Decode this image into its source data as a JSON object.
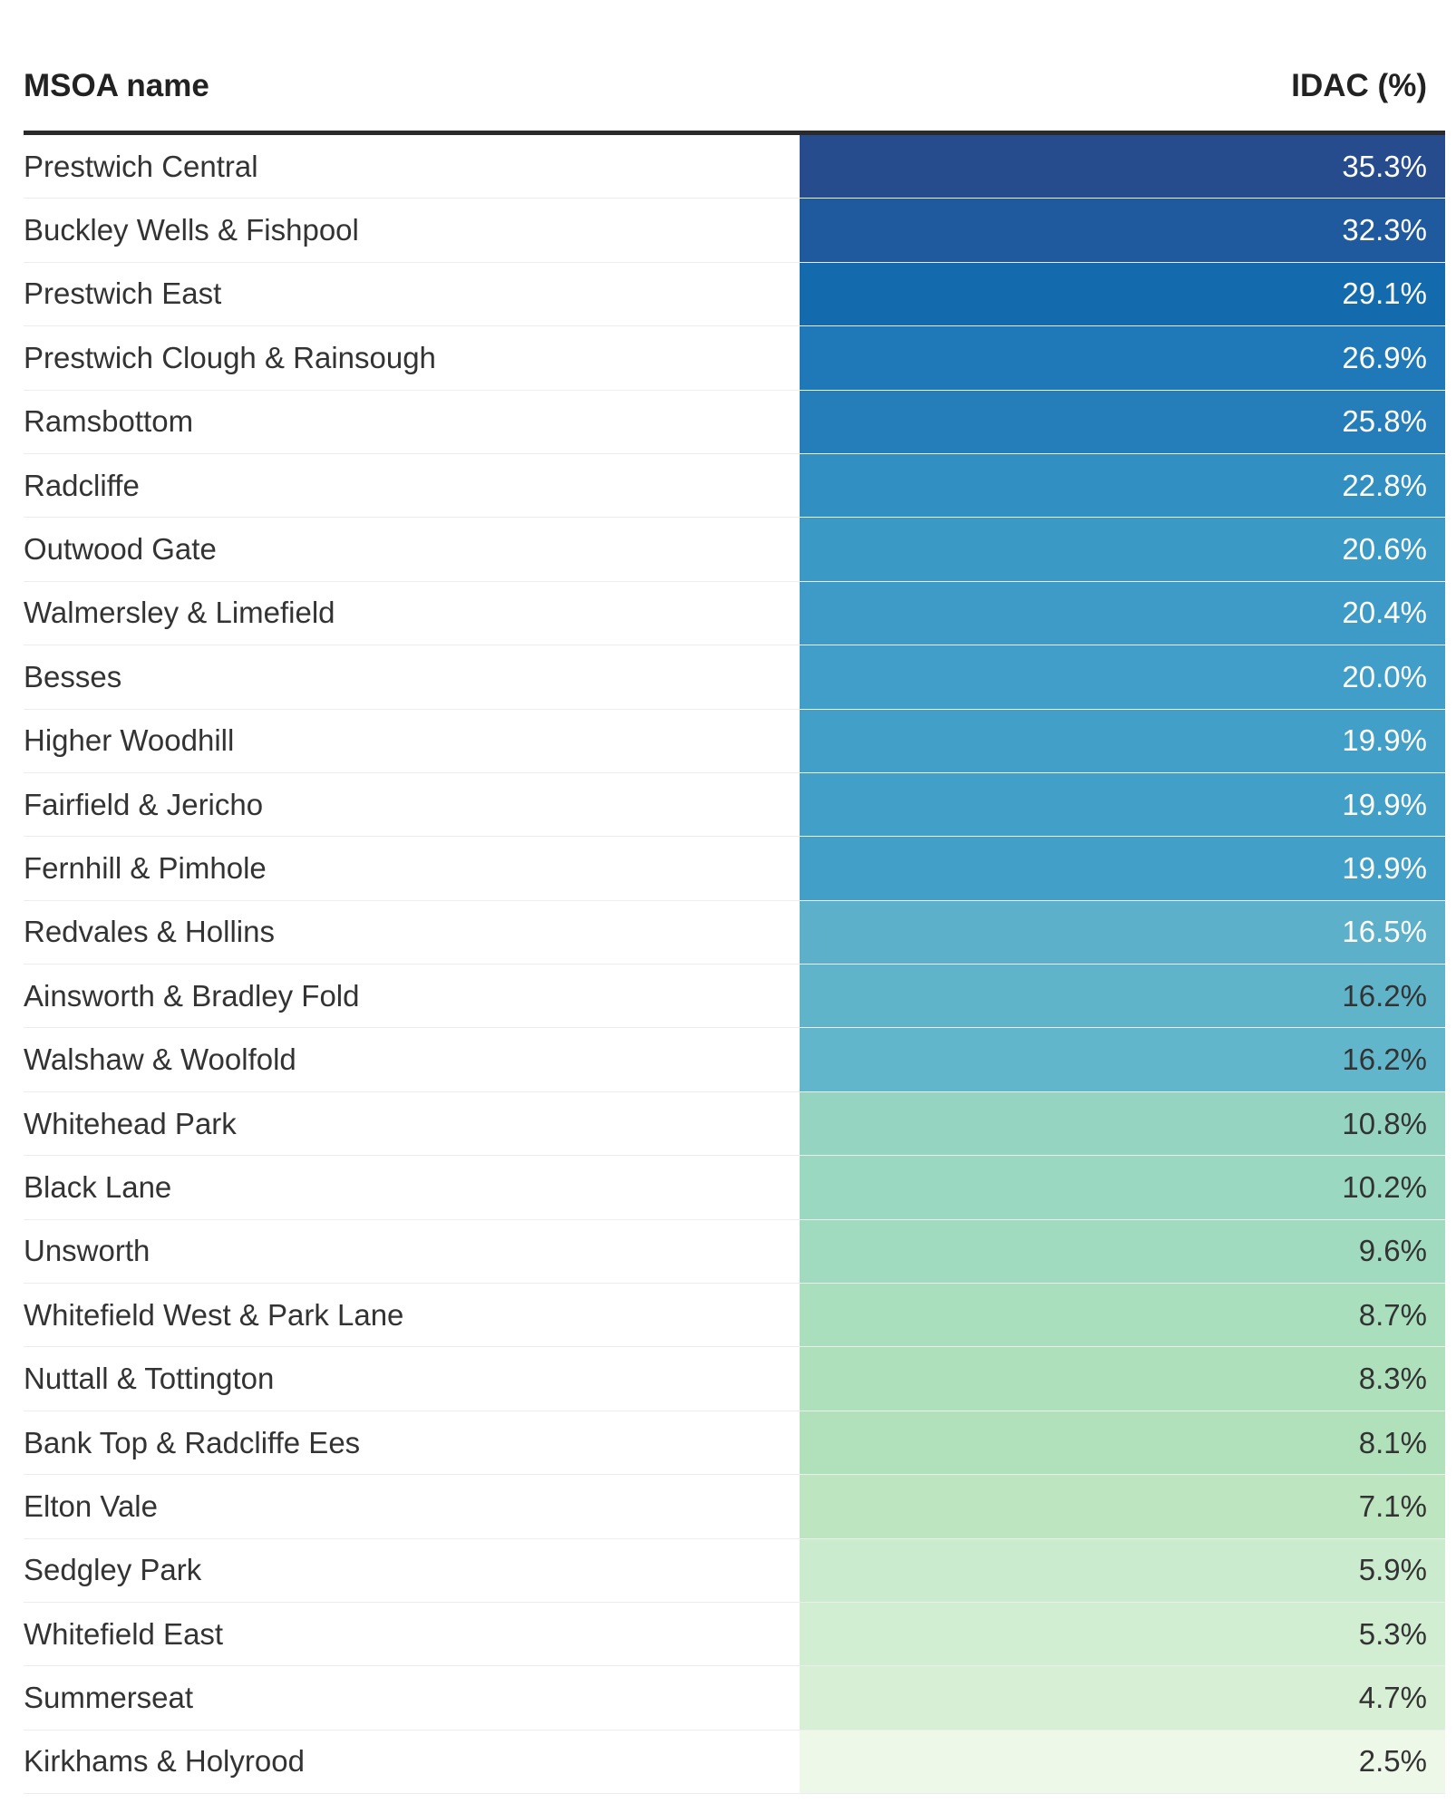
{
  "chart_data": {
    "type": "table",
    "columns": [
      "MSOA name",
      "IDAC (%)"
    ],
    "rows": [
      {
        "name": "Prestwich Central",
        "value": 35.3,
        "label": "35.3%",
        "color": "#264c8e"
      },
      {
        "name": "Buckley Wells & Fishpool",
        "value": 32.3,
        "label": "32.3%",
        "color": "#1f5a9f"
      },
      {
        "name": "Prestwich East",
        "value": 29.1,
        "label": "29.1%",
        "color": "#136bae"
      },
      {
        "name": "Prestwich Clough & Rainsough",
        "value": 26.9,
        "label": "26.9%",
        "color": "#1f79b8"
      },
      {
        "name": "Ramsbottom",
        "value": 25.8,
        "label": "25.8%",
        "color": "#257dba"
      },
      {
        "name": "Radcliffe",
        "value": 22.8,
        "label": "22.8%",
        "color": "#318fc2"
      },
      {
        "name": "Outwood Gate",
        "value": 20.6,
        "label": "20.6%",
        "color": "#3b99c6"
      },
      {
        "name": "Walmersley & Limefield",
        "value": 20.4,
        "label": "20.4%",
        "color": "#3e9bc7"
      },
      {
        "name": "Besses",
        "value": 20.0,
        "label": "20.0%",
        "color": "#409ec8"
      },
      {
        "name": "Higher Woodhill",
        "value": 19.9,
        "label": "19.9%",
        "color": "#429fc8"
      },
      {
        "name": "Fairfield & Jericho",
        "value": 19.9,
        "label": "19.9%",
        "color": "#429fc8"
      },
      {
        "name": "Fernhill & Pimhole",
        "value": 19.9,
        "label": "19.9%",
        "color": "#429fc8"
      },
      {
        "name": "Redvales & Hollins",
        "value": 16.5,
        "label": "16.5%",
        "color": "#5cb0c9"
      },
      {
        "name": "Ainsworth & Bradley Fold",
        "value": 16.2,
        "label": "16.2%",
        "color": "#60b4ca"
      },
      {
        "name": "Walshaw & Woolfold",
        "value": 16.2,
        "label": "16.2%",
        "color": "#62b6cb"
      },
      {
        "name": "Whitehead Park",
        "value": 10.8,
        "label": "10.8%",
        "color": "#95d4c1"
      },
      {
        "name": "Black Lane",
        "value": 10.2,
        "label": "10.2%",
        "color": "#9ad8c1"
      },
      {
        "name": "Unsworth",
        "value": 9.6,
        "label": "9.6%",
        "color": "#a0dbc0"
      },
      {
        "name": "Whitefield West & Park Lane",
        "value": 8.7,
        "label": "8.7%",
        "color": "#a9dfbd"
      },
      {
        "name": "Nuttall & Tottington",
        "value": 8.3,
        "label": "8.3%",
        "color": "#aee0bc"
      },
      {
        "name": "Bank Top & Radcliffe Ees",
        "value": 8.1,
        "label": "8.1%",
        "color": "#b1e1bb"
      },
      {
        "name": "Elton Vale",
        "value": 7.1,
        "label": "7.1%",
        "color": "#bce5c0"
      },
      {
        "name": "Sedgley Park",
        "value": 5.9,
        "label": "5.9%",
        "color": "#cbebce"
      },
      {
        "name": "Whitefield East",
        "value": 5.3,
        "label": "5.3%",
        "color": "#d1edd2"
      },
      {
        "name": "Summerseat",
        "value": 4.7,
        "label": "4.7%",
        "color": "#d7efd5"
      },
      {
        "name": "Kirkhams & Holyrood",
        "value": 2.5,
        "label": "2.5%",
        "color": "#eef8e9"
      }
    ]
  }
}
